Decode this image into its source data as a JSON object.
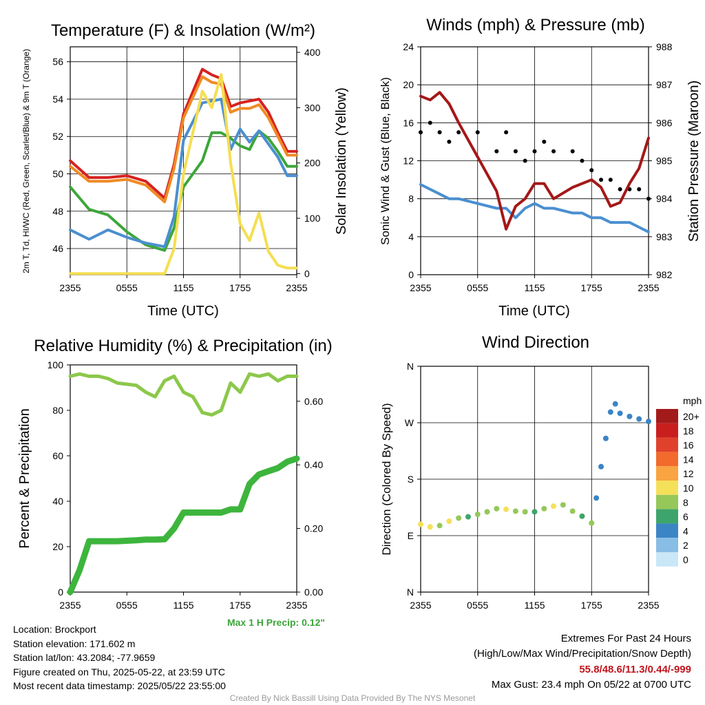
{
  "colors": {
    "red": "#d62220",
    "orange": "#f08a24",
    "green": "#3da63a",
    "blue": "#4a8fd0",
    "yellow": "#f5de52",
    "maroon": "#a31818",
    "black": "#000000",
    "rh": "#8cc84b",
    "precip": "#3db53d",
    "wind_blue": "#5a9ad6"
  },
  "chart_data": [
    {
      "id": "temperature",
      "type": "line",
      "title": "Temperature (F) & Insolation (W/m²)",
      "xlabel": "Time (UTC)",
      "ylabel": "2m T, Td, HI/WC (Red, Green, Scarlet/Blue) & 9m T (Orange)",
      "ylabel_right": "Solar Insolation (Yellow)",
      "x_ticks": [
        "2355",
        "0555",
        "1155",
        "1755",
        "2355"
      ],
      "y_ticks": [
        46,
        48,
        50,
        52,
        54,
        56
      ],
      "y_ticks_right": [
        0,
        100,
        200,
        300,
        400
      ],
      "ylim": [
        44.6,
        56.8
      ],
      "ylim_right": [
        -2,
        410
      ],
      "x": [
        0,
        2,
        4,
        6,
        8,
        10,
        11,
        12,
        14,
        15,
        16,
        17,
        18,
        19,
        20,
        21,
        22,
        23,
        24
      ],
      "series": [
        {
          "name": "2m T",
          "color": "red",
          "axis": "left",
          "values": [
            50.7,
            49.8,
            49.8,
            49.9,
            49.6,
            48.7,
            50.5,
            53.2,
            55.6,
            55.3,
            55.1,
            53.6,
            53.8,
            53.9,
            54.0,
            53.3,
            52.2,
            51.2,
            51.2
          ]
        },
        {
          "name": "9m T",
          "color": "orange",
          "axis": "left",
          "values": [
            50.4,
            49.6,
            49.6,
            49.7,
            49.4,
            48.5,
            50.3,
            53.0,
            55.2,
            54.9,
            54.8,
            53.3,
            53.5,
            53.5,
            53.7,
            53.0,
            52.0,
            51.0,
            51.0
          ]
        },
        {
          "name": "Td",
          "color": "green",
          "axis": "left",
          "values": [
            49.3,
            48.1,
            47.8,
            46.9,
            46.2,
            45.9,
            47.1,
            49.3,
            50.7,
            52.2,
            52.2,
            51.9,
            51.5,
            51.3,
            52.3,
            51.9,
            51.2,
            50.4,
            50.4
          ]
        },
        {
          "name": "HI/WC",
          "color": "blue",
          "axis": "left",
          "values": [
            47.0,
            46.5,
            47.0,
            46.6,
            46.3,
            46.1,
            47.7,
            51.8,
            53.8,
            53.9,
            54.0,
            51.3,
            52.4,
            51.7,
            52.3,
            51.6,
            50.9,
            49.9,
            49.9
          ]
        },
        {
          "name": "Solar Insolation",
          "color": "yellow",
          "axis": "right",
          "values": [
            0,
            0,
            0,
            0,
            0,
            0,
            45,
            180,
            330,
            300,
            360,
            200,
            90,
            60,
            110,
            40,
            15,
            10,
            10
          ]
        }
      ]
    },
    {
      "id": "wind",
      "type": "line",
      "title": "Winds (mph) & Pressure (mb)",
      "xlabel": "Time (UTC)",
      "ylabel": "Sonic Wind & Gust (Blue, Black)",
      "ylabel_right": "Station Pressure (Maroon)",
      "x_ticks": [
        "2355",
        "0555",
        "1155",
        "1755",
        "2355"
      ],
      "y_ticks": [
        0,
        4,
        8,
        12,
        16,
        20,
        24
      ],
      "y_ticks_right": [
        982,
        983,
        984,
        985,
        986,
        987,
        988
      ],
      "ylim": [
        0,
        24
      ],
      "ylim_right": [
        982,
        988
      ],
      "x": [
        0,
        1,
        2,
        3,
        4,
        6,
        8,
        9,
        10,
        11,
        12,
        13,
        14,
        16,
        17,
        18,
        19,
        20,
        21,
        22,
        23,
        24
      ],
      "series": [
        {
          "name": "Sonic Wind",
          "color": "blue",
          "axis": "left",
          "values": [
            9.5,
            9.0,
            8.5,
            8.0,
            8.0,
            7.5,
            7.0,
            7.0,
            6.0,
            7.0,
            7.5,
            7.0,
            7.0,
            6.5,
            6.5,
            6.0,
            6.0,
            5.5,
            5.5,
            5.5,
            5.0,
            4.5
          ]
        },
        {
          "name": "Gust",
          "color": "black",
          "axis": "left",
          "values": [
            15,
            16,
            15,
            14,
            15,
            15,
            13,
            15,
            13,
            12,
            13,
            14,
            13,
            13,
            12,
            11,
            10,
            10,
            9,
            9,
            9,
            8
          ]
        },
        {
          "name": "Station Pressure",
          "color": "maroon",
          "axis": "right",
          "values": [
            986.7,
            986.6,
            986.8,
            986.5,
            986.0,
            985.1,
            984.2,
            983.2,
            983.8,
            984.0,
            984.4,
            984.4,
            984.0,
            984.3,
            984.4,
            984.5,
            984.3,
            983.8,
            983.9,
            984.4,
            984.8,
            985.6
          ]
        }
      ]
    },
    {
      "id": "rh",
      "type": "line",
      "title": "Relative Humidity (%) & Precipitation (in)",
      "ylabel": "Percent & Precipitation",
      "x_ticks": [
        "2355",
        "0555",
        "1155",
        "1755",
        "2355"
      ],
      "y_ticks": [
        0,
        20,
        40,
        60,
        80,
        100
      ],
      "y_ticks_right": [
        "0.00",
        "0.20",
        "0.40",
        "0.60"
      ],
      "ylim": [
        0,
        100
      ],
      "ylim_right": [
        0,
        0.7143
      ],
      "x": [
        0,
        1,
        2,
        3,
        4,
        5,
        7,
        8,
        9,
        10,
        11,
        12,
        13,
        14,
        15,
        16,
        17,
        18,
        19,
        20,
        21,
        22,
        23,
        24
      ],
      "series": [
        {
          "name": "RH",
          "color": "rh",
          "axis": "left",
          "values": [
            95,
            96,
            95,
            95,
            94,
            92,
            91,
            88,
            86,
            93,
            95,
            88,
            86,
            79,
            78,
            80,
            92,
            88,
            96,
            95,
            96,
            93,
            95,
            95
          ]
        },
        {
          "name": "Precipitation",
          "color": "precip",
          "axis": "right",
          "values": [
            0.0,
            0.07,
            0.16,
            0.16,
            0.16,
            0.16,
            0.163,
            0.165,
            0.165,
            0.166,
            0.2,
            0.25,
            0.25,
            0.25,
            0.25,
            0.25,
            0.26,
            0.26,
            0.34,
            0.37,
            0.38,
            0.39,
            0.41,
            0.42
          ]
        }
      ]
    },
    {
      "id": "direction",
      "type": "scatter",
      "title": "Wind Direction",
      "ylabel": "Direction (Colored By Speed)",
      "x_ticks": [
        "2355",
        "0555",
        "1155",
        "1755",
        "2355"
      ],
      "y_ticks": [
        "N",
        "E",
        "S",
        "W",
        "N"
      ],
      "ylim": [
        0,
        360
      ],
      "x": [
        0,
        1,
        2,
        3,
        4,
        5,
        6,
        7,
        8,
        9,
        10,
        11,
        12,
        13,
        14,
        15,
        16,
        17,
        18,
        18.5,
        19,
        19.5,
        20,
        20.5,
        21,
        22,
        23,
        24
      ],
      "series": [
        {
          "name": "Direction",
          "values": [
            108,
            104,
            106,
            113,
            118,
            120,
            124,
            128,
            133,
            132,
            129,
            128,
            128,
            133,
            137,
            139,
            129,
            121,
            110,
            150,
            200,
            245,
            287,
            300,
            285,
            280,
            276,
            272
          ],
          "speeds": [
            9,
            10,
            8,
            9,
            7,
            6,
            8,
            7,
            8,
            9,
            8,
            7,
            6,
            8,
            10,
            8,
            7,
            6,
            8,
            4,
            3,
            4,
            3,
            4,
            3,
            4,
            4,
            4
          ]
        }
      ],
      "legend": {
        "title": "mph",
        "labels": [
          "20+",
          "18",
          "16",
          "14",
          "12",
          "10",
          "8",
          "6",
          "4",
          "2",
          "0"
        ],
        "colors": [
          "#a31a1a",
          "#c81e1e",
          "#e0412c",
          "#f26a2c",
          "#f9a341",
          "#f5e05a",
          "#95c859",
          "#3da56b",
          "#3b85c5",
          "#88bde6",
          "#c9e7f7"
        ]
      }
    }
  ],
  "annotations": {
    "max_precip": "Max 1 H Precip: 0.12\""
  },
  "info": {
    "location": "Location: Brockport",
    "elevation": "Station elevation: 171.602 m",
    "latlon": "Station lat/lon: 43.2084; -77.9659",
    "created": "Figure created on Thu, 2025-05-22, at 23:59 UTC",
    "recent": "Most recent data timestamp: 2025/05/22 23:55:00"
  },
  "extremes": {
    "title": "Extremes For Past 24 Hours",
    "subtitle": "(High/Low/Max Wind/Precipitation/Snow Depth)",
    "values": "55.8/48.6/11.3/0.44/-999",
    "gust": "Max Gust: 23.4 mph On 05/22 at 0700 UTC"
  },
  "credit": "Created By Nick Bassill Using Data Provided By The NYS Mesonet"
}
